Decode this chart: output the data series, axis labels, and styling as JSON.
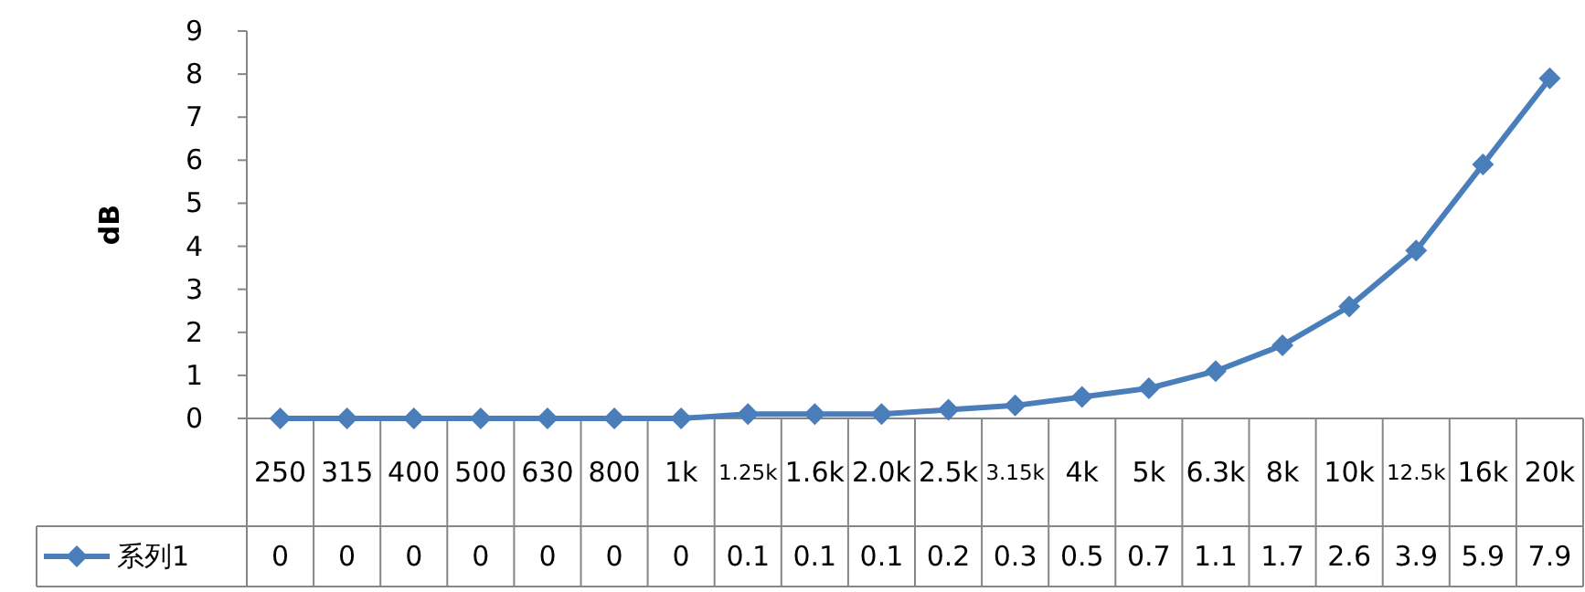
{
  "chart_data": {
    "type": "line",
    "ylabel": "dB",
    "categories": [
      "250",
      "315",
      "400",
      "500",
      "630",
      "800",
      "1k",
      "1.25k",
      "1.6k",
      "2.0k",
      "2.5k",
      "3.15k",
      "4k",
      "5k",
      "6.3k",
      "8k",
      "10k",
      "12.5k",
      "16k",
      "20k"
    ],
    "series": [
      {
        "name": "系列1",
        "color": "#4a7ebb",
        "values": [
          0,
          0,
          0,
          0,
          0,
          0,
          0,
          0.1,
          0.1,
          0.1,
          0.2,
          0.3,
          0.5,
          0.7,
          1.1,
          1.7,
          2.6,
          3.9,
          5.9,
          7.9
        ]
      }
    ],
    "ylim": [
      0,
      9
    ],
    "yticks": [
      0,
      1,
      2,
      3,
      4,
      5,
      6,
      7,
      8,
      9
    ],
    "marker": "diamond",
    "line_style": "solid",
    "legend": "bottom",
    "data_labels": true
  }
}
